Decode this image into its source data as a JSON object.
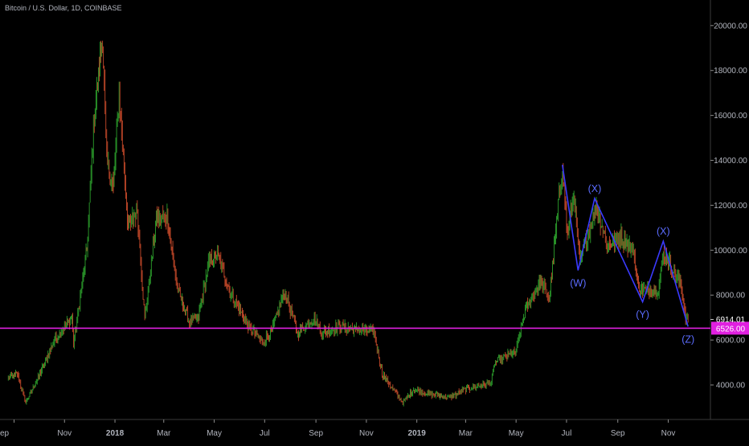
{
  "chart_data": {
    "type": "candlestick",
    "title": "Bitcoin / U.S. Dollar, 1D, COINBASE",
    "x_ticks": [
      "ep",
      "Nov",
      "2018",
      "Mar",
      "May",
      "Jul",
      "Sep",
      "Nov",
      "2019",
      "Mar",
      "May",
      "Jul",
      "Sep",
      "Nov"
    ],
    "y_ticks": [
      "4000.00",
      "6000.00",
      "8000.00",
      "10000.00",
      "12000.00",
      "14000.00",
      "16000.00",
      "18000.00",
      "20000.00"
    ],
    "ylim": [
      2200,
      20800
    ],
    "price_path": [
      [
        "2017-08-25",
        4300
      ],
      [
        "2017-09-05",
        4500
      ],
      [
        "2017-09-15",
        3200
      ],
      [
        "2017-10-01",
        4400
      ],
      [
        "2017-10-20",
        6000
      ],
      [
        "2017-11-10",
        7000
      ],
      [
        "2017-11-12",
        5800
      ],
      [
        "2017-11-28",
        10000
      ],
      [
        "2017-12-07",
        16000
      ],
      [
        "2017-12-17",
        19400
      ],
      [
        "2017-12-22",
        14000
      ],
      [
        "2017-12-30",
        12800
      ],
      [
        "2018-01-06",
        17000
      ],
      [
        "2018-01-17",
        11000
      ],
      [
        "2018-01-28",
        11800
      ],
      [
        "2018-02-06",
        6900
      ],
      [
        "2018-02-20",
        11400
      ],
      [
        "2018-03-05",
        11500
      ],
      [
        "2018-03-18",
        8200
      ],
      [
        "2018-04-01",
        6800
      ],
      [
        "2018-04-12",
        7000
      ],
      [
        "2018-04-24",
        9400
      ],
      [
        "2018-05-05",
        9800
      ],
      [
        "2018-05-20",
        8200
      ],
      [
        "2018-06-10",
        6700
      ],
      [
        "2018-06-28",
        5900
      ],
      [
        "2018-07-10",
        6400
      ],
      [
        "2018-07-25",
        8200
      ],
      [
        "2018-08-10",
        6300
      ],
      [
        "2018-08-30",
        7000
      ],
      [
        "2018-09-08",
        6300
      ],
      [
        "2018-09-30",
        6600
      ],
      [
        "2018-10-20",
        6450
      ],
      [
        "2018-11-10",
        6400
      ],
      [
        "2018-11-20",
        4500
      ],
      [
        "2018-12-15",
        3200
      ],
      [
        "2018-12-28",
        3800
      ],
      [
        "2019-01-15",
        3600
      ],
      [
        "2019-02-10",
        3450
      ],
      [
        "2019-03-01",
        3800
      ],
      [
        "2019-04-01",
        4100
      ],
      [
        "2019-04-05",
        5000
      ],
      [
        "2019-05-01",
        5500
      ],
      [
        "2019-05-12",
        7300
      ],
      [
        "2019-05-31",
        8600
      ],
      [
        "2019-06-10",
        7800
      ],
      [
        "2019-06-26",
        13800
      ],
      [
        "2019-07-02",
        10600
      ],
      [
        "2019-07-10",
        12500
      ],
      [
        "2019-07-17",
        9400
      ],
      [
        "2019-08-06",
        12000
      ],
      [
        "2019-08-20",
        10200
      ],
      [
        "2019-09-05",
        10600
      ],
      [
        "2019-09-20",
        10000
      ],
      [
        "2019-09-25",
        8400
      ],
      [
        "2019-10-05",
        8200
      ],
      [
        "2019-10-20",
        8200
      ],
      [
        "2019-10-26",
        9800
      ],
      [
        "2019-11-05",
        9300
      ],
      [
        "2019-11-16",
        8500
      ],
      [
        "2019-11-22",
        7100
      ],
      [
        "2019-11-25",
        6900
      ]
    ],
    "wave_points": [
      [
        "2019-06-26",
        13800,
        ""
      ],
      [
        "2019-07-15",
        9100,
        "(W)"
      ],
      [
        "2019-08-04",
        12300,
        "(X)"
      ],
      [
        "2019-10-01",
        7700,
        "(Y)"
      ],
      [
        "2019-10-26",
        10400,
        "(X)"
      ],
      [
        "2019-11-25",
        6600,
        "(Z)"
      ]
    ],
    "horizontal_line": {
      "value": 6526,
      "label": "6526.00",
      "color": "#e020e0"
    },
    "last_price": {
      "value": 6914.01,
      "label": "6914.01"
    },
    "colors": {
      "up": "#2ca02c",
      "down": "#c84a2a",
      "wave": "#3a3aff"
    }
  }
}
